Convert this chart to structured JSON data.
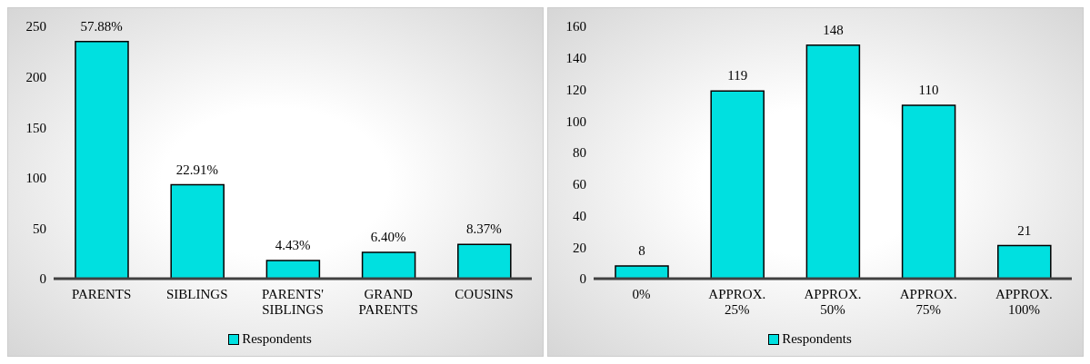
{
  "chart_data": [
    {
      "type": "bar",
      "categories": [
        "PARENTS",
        "SIBLINGS",
        "PARENTS' SIBLINGS",
        "GRAND PARENTS",
        "COUSINS"
      ],
      "series": [
        {
          "name": "Respondents",
          "color": "#00e0e0",
          "values": [
            235,
            93,
            18,
            26,
            34
          ]
        }
      ],
      "ylim": [
        0,
        250
      ],
      "yticks": [
        0,
        50,
        100,
        150,
        200,
        250
      ],
      "grid": false,
      "legend": "bottom",
      "annotations": [
        {
          "text": "57.88%",
          "x": "PARENTS",
          "y": 235
        },
        {
          "text": "22.91%",
          "x": "SIBLINGS",
          "y": 93
        },
        {
          "text": "4.43%",
          "x": "PARENTS' SIBLINGS",
          "y": 18
        },
        {
          "text": "6.40%",
          "x": "GRAND PARENTS",
          "y": 26
        },
        {
          "text": "8.37%",
          "x": "COUSINS",
          "y": 34
        }
      ]
    },
    {
      "type": "bar",
      "categories": [
        "0%",
        "APPROX. 25%",
        "APPROX. 50%",
        "APPROX. 75%",
        "APPROX. 100%"
      ],
      "series": [
        {
          "name": "Respondents",
          "color": "#00e0e0",
          "values": [
            8,
            119,
            148,
            110,
            21
          ]
        }
      ],
      "ylim": [
        0,
        160
      ],
      "yticks": [
        0,
        20,
        40,
        60,
        80,
        100,
        120,
        140,
        160
      ],
      "grid": false,
      "legend": "bottom",
      "data_labels": true
    }
  ]
}
